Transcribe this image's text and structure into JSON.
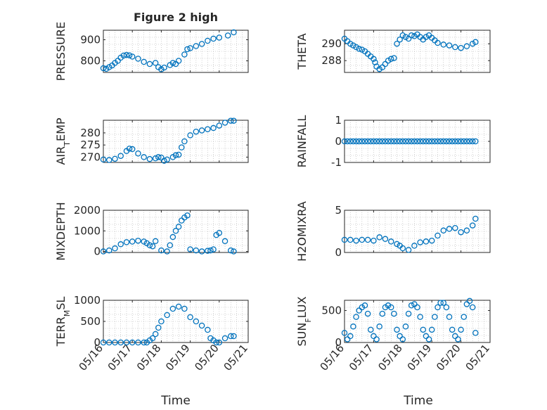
{
  "figure": {
    "title": "Figure 2 high"
  },
  "xaxis": {
    "label": "Time",
    "tick_labels": [
      "05/16",
      "05/17",
      "05/18",
      "05/19",
      "05/20",
      "05/21"
    ],
    "xlim": [
      0,
      5
    ]
  },
  "colors": {
    "marker": "#0072BD",
    "axis": "#262626",
    "grid": "#b0b0b0"
  },
  "chart_data": [
    {
      "type": "scatter",
      "ylabel": "PRESSURE",
      "yticks": [
        {
          "v": 900,
          "label": "900"
        },
        {
          "v": 800,
          "label": "800"
        }
      ],
      "ylim": [
        745,
        945
      ],
      "x": [
        0,
        0.1,
        0.2,
        0.3,
        0.4,
        0.5,
        0.6,
        0.7,
        0.8,
        0.9,
        1.0,
        1.2,
        1.4,
        1.6,
        1.8,
        1.9,
        2.0,
        2.1,
        2.3,
        2.4,
        2.5,
        2.6,
        2.8,
        2.9,
        3.0,
        3.2,
        3.4,
        3.6,
        3.8,
        4.0,
        4.3,
        4.5
      ],
      "y": [
        765,
        762,
        770,
        778,
        790,
        800,
        815,
        825,
        828,
        826,
        820,
        810,
        795,
        785,
        790,
        770,
        760,
        768,
        780,
        790,
        785,
        800,
        830,
        855,
        860,
        870,
        880,
        895,
        905,
        910,
        920,
        935
      ]
    },
    {
      "type": "scatter",
      "ylabel": "THETA",
      "yticks": [
        {
          "v": 290,
          "label": "290"
        },
        {
          "v": 288,
          "label": "288"
        }
      ],
      "ylim": [
        286.6,
        291.6
      ],
      "x": [
        0,
        0.1,
        0.2,
        0.3,
        0.4,
        0.5,
        0.6,
        0.7,
        0.8,
        0.9,
        1.0,
        1.05,
        1.1,
        1.2,
        1.3,
        1.4,
        1.5,
        1.6,
        1.7,
        1.8,
        1.9,
        2.0,
        2.1,
        2.2,
        2.3,
        2.4,
        2.5,
        2.6,
        2.7,
        2.8,
        2.9,
        3.0,
        3.1,
        3.2,
        3.4,
        3.6,
        3.8,
        4.0,
        4.2,
        4.4,
        4.5
      ],
      "y": [
        290.6,
        290.3,
        290.0,
        289.8,
        289.6,
        289.4,
        289.3,
        289.1,
        288.8,
        288.5,
        288.2,
        287.8,
        287.3,
        287.0,
        287.2,
        287.6,
        288.0,
        288.2,
        288.3,
        290.0,
        290.5,
        291.0,
        290.8,
        290.6,
        291.0,
        290.9,
        291.1,
        290.8,
        290.5,
        290.8,
        291.0,
        290.7,
        290.4,
        290.1,
        289.9,
        289.8,
        289.6,
        289.5,
        289.7,
        290.0,
        290.2
      ]
    },
    {
      "type": "scatter",
      "ylabel": "AIR_TEMP",
      "yticks": [
        {
          "v": 280,
          "label": "280"
        },
        {
          "v": 275,
          "label": "275"
        },
        {
          "v": 270,
          "label": "270"
        }
      ],
      "ylim": [
        267.8,
        285.2
      ],
      "x": [
        0,
        0.2,
        0.4,
        0.6,
        0.8,
        0.9,
        1.0,
        1.2,
        1.4,
        1.6,
        1.8,
        1.9,
        2.0,
        2.1,
        2.2,
        2.4,
        2.5,
        2.6,
        2.7,
        2.8,
        3.0,
        3.2,
        3.4,
        3.6,
        3.8,
        4.0,
        4.2,
        4.4,
        4.5
      ],
      "y": [
        269,
        268.8,
        269.3,
        270.5,
        272.5,
        273.5,
        273.3,
        271.5,
        270.0,
        269.2,
        269.5,
        270.0,
        269.8,
        268.5,
        269.0,
        270.0,
        270.8,
        271.0,
        274.0,
        276.5,
        279.0,
        280.5,
        281.0,
        281.5,
        282.0,
        283.0,
        284.2,
        285.0,
        285.0
      ]
    },
    {
      "type": "scatter",
      "ylabel": "RAINFALL",
      "yticks": [
        {
          "v": 1,
          "label": "1"
        },
        {
          "v": 0,
          "label": "0"
        },
        {
          "v": -1,
          "label": "-1"
        }
      ],
      "ylim": [
        -1,
        1
      ],
      "x": [
        0,
        0.1,
        0.2,
        0.3,
        0.4,
        0.5,
        0.6,
        0.7,
        0.8,
        0.9,
        1.0,
        1.1,
        1.2,
        1.3,
        1.4,
        1.5,
        1.6,
        1.7,
        1.8,
        1.9,
        2.0,
        2.1,
        2.2,
        2.3,
        2.4,
        2.5,
        2.6,
        2.7,
        2.8,
        2.9,
        3.0,
        3.1,
        3.2,
        3.3,
        3.4,
        3.5,
        3.6,
        3.7,
        3.8,
        3.9,
        4.0,
        4.1,
        4.2,
        4.3,
        4.4,
        4.5
      ],
      "y": [
        0,
        0,
        0,
        0,
        0,
        0,
        0,
        0,
        0,
        0,
        0,
        0,
        0,
        0,
        0,
        0,
        0,
        0,
        0,
        0,
        0,
        0,
        0,
        0,
        0,
        0,
        0,
        0,
        0,
        0,
        0,
        0,
        0,
        0,
        0,
        0,
        0,
        0,
        0,
        0,
        0,
        0,
        0,
        0,
        0,
        0
      ]
    },
    {
      "type": "scatter",
      "ylabel": "MIXDEPTH",
      "yticks": [
        {
          "v": 2000,
          "label": "2000"
        },
        {
          "v": 1000,
          "label": "1000"
        },
        {
          "v": 0,
          "label": "0"
        }
      ],
      "ylim": [
        -50,
        2000
      ],
      "x": [
        0,
        0.2,
        0.4,
        0.6,
        0.8,
        1.0,
        1.2,
        1.4,
        1.5,
        1.6,
        1.7,
        1.8,
        2.0,
        2.2,
        2.3,
        2.4,
        2.5,
        2.6,
        2.7,
        2.8,
        2.9,
        3.0,
        3.2,
        3.4,
        3.6,
        3.7,
        3.8,
        3.9,
        4.0,
        4.2,
        4.4,
        4.5
      ],
      "y": [
        0,
        50,
        150,
        350,
        450,
        480,
        520,
        480,
        400,
        300,
        250,
        500,
        50,
        0,
        300,
        700,
        1000,
        1200,
        1500,
        1650,
        1750,
        100,
        50,
        0,
        30,
        50,
        100,
        800,
        900,
        500,
        50,
        0
      ]
    },
    {
      "type": "scatter",
      "ylabel": "H2OMIXRA",
      "yticks": [
        {
          "v": 5,
          "label": "5"
        },
        {
          "v": 0,
          "label": "0"
        }
      ],
      "ylim": [
        0,
        5
      ],
      "x": [
        0,
        0.2,
        0.4,
        0.6,
        0.8,
        1.0,
        1.2,
        1.4,
        1.6,
        1.8,
        1.9,
        2.0,
        2.2,
        2.4,
        2.6,
        2.8,
        3.0,
        3.2,
        3.4,
        3.6,
        3.8,
        4.0,
        4.2,
        4.4,
        4.5
      ],
      "y": [
        1.5,
        1.5,
        1.4,
        1.5,
        1.5,
        1.4,
        1.8,
        1.6,
        1.3,
        1.0,
        0.8,
        0.5,
        0.3,
        0.8,
        1.2,
        1.3,
        1.4,
        2.0,
        2.6,
        2.8,
        2.9,
        2.4,
        2.6,
        3.2,
        4.0
      ]
    },
    {
      "type": "scatter",
      "ylabel": "TERR_MSL",
      "yticks": [
        {
          "v": 1000,
          "label": "1000"
        },
        {
          "v": 500,
          "label": "500"
        },
        {
          "v": 0,
          "label": "0"
        }
      ],
      "ylim": [
        0,
        1000
      ],
      "x": [
        0,
        0.2,
        0.4,
        0.6,
        0.8,
        1.0,
        1.2,
        1.4,
        1.5,
        1.6,
        1.7,
        1.8,
        1.9,
        2.0,
        2.2,
        2.4,
        2.6,
        2.8,
        3.0,
        3.2,
        3.4,
        3.6,
        3.7,
        3.8,
        3.9,
        4.0,
        4.2,
        4.4,
        4.5
      ],
      "y": [
        0,
        0,
        0,
        0,
        0,
        0,
        0,
        0,
        0,
        50,
        100,
        200,
        350,
        500,
        650,
        800,
        850,
        800,
        600,
        500,
        400,
        300,
        100,
        50,
        0,
        0,
        100,
        150,
        150
      ]
    },
    {
      "type": "scatter",
      "ylabel": "SUN_FLUX",
      "yticks": [
        {
          "v": 500,
          "label": "500"
        },
        {
          "v": 0,
          "label": "0"
        }
      ],
      "ylim": [
        0,
        660
      ],
      "x": [
        0,
        0.1,
        0.2,
        0.3,
        0.4,
        0.5,
        0.6,
        0.7,
        0.8,
        0.9,
        1.0,
        1.1,
        1.2,
        1.3,
        1.4,
        1.5,
        1.6,
        1.7,
        1.8,
        1.9,
        2.0,
        2.1,
        2.2,
        2.3,
        2.4,
        2.5,
        2.6,
        2.7,
        2.8,
        2.9,
        3.0,
        3.1,
        3.2,
        3.3,
        3.4,
        3.5,
        3.6,
        3.7,
        3.8,
        3.9,
        4.0,
        4.1,
        4.2,
        4.3,
        4.4,
        4.5
      ],
      "y": [
        150,
        50,
        100,
        250,
        400,
        500,
        550,
        580,
        450,
        200,
        100,
        50,
        250,
        450,
        550,
        580,
        550,
        450,
        200,
        100,
        50,
        250,
        450,
        580,
        600,
        550,
        400,
        200,
        100,
        50,
        200,
        400,
        550,
        620,
        620,
        550,
        400,
        200,
        100,
        50,
        200,
        400,
        600,
        650,
        550,
        150
      ]
    }
  ]
}
